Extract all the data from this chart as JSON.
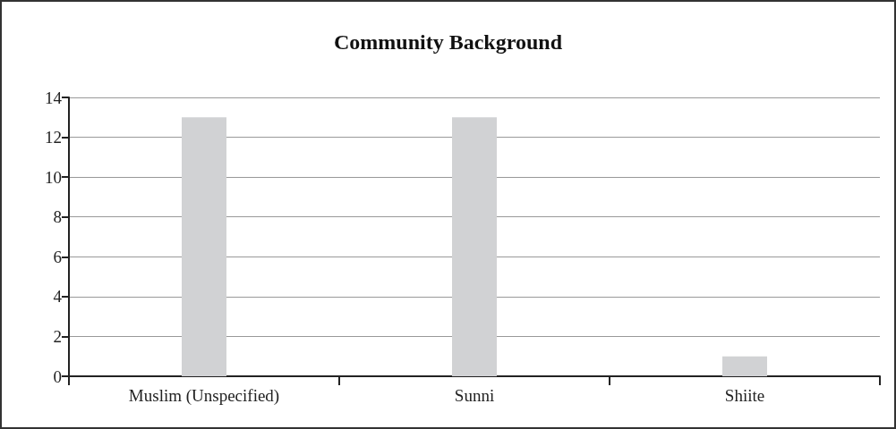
{
  "chart_data": {
    "type": "bar",
    "title": "Community Background",
    "categories": [
      "Muslim (Unspecified)",
      "Sunni",
      "Shiite"
    ],
    "values": [
      13,
      13,
      1
    ],
    "color": "#d1d2d4",
    "ylim": [
      0,
      14
    ],
    "yticks": [
      0,
      2,
      4,
      6,
      8,
      10,
      12,
      14
    ],
    "grid": "y"
  }
}
